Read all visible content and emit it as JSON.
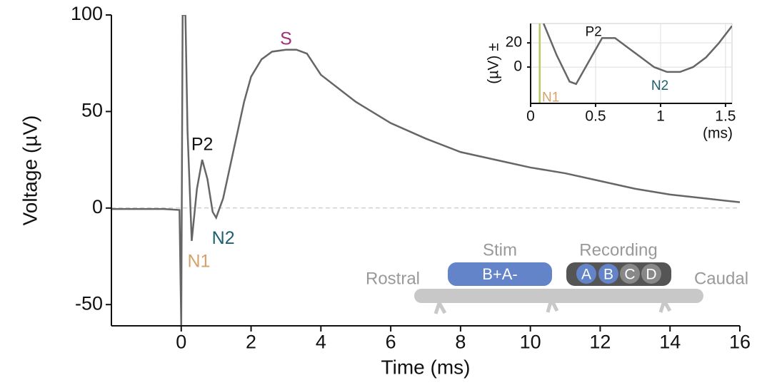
{
  "chart_data": [
    {
      "type": "line",
      "xlabel": "Time (ms)",
      "ylabel": "Voltage (µV)",
      "x": [
        -2,
        -1.5,
        -1,
        -0.5,
        -0.05,
        0,
        0.04,
        0.08,
        0.12,
        0.18,
        0.3,
        0.45,
        0.6,
        0.75,
        0.9,
        1.0,
        1.2,
        1.5,
        1.8,
        2.0,
        2.3,
        2.6,
        3.0,
        3.3,
        3.6,
        4,
        5,
        6,
        7,
        8,
        9,
        10,
        11,
        12,
        13,
        14,
        15,
        16
      ],
      "values": [
        -0.5,
        -0.5,
        -0.5,
        -0.5,
        -1,
        -61,
        100,
        100,
        100,
        40,
        -17,
        10,
        25,
        15,
        -2,
        -5,
        5,
        30,
        55,
        68,
        77,
        81,
        82,
        82,
        80,
        69,
        55,
        44,
        36,
        29,
        25,
        21,
        18,
        14,
        10,
        7,
        5,
        3
      ],
      "color": "#666666",
      "xlim": [
        -2,
        16
      ],
      "xticks": [
        0,
        2,
        4,
        6,
        8,
        10,
        12,
        14,
        16
      ],
      "ylim": [
        -61,
        100
      ],
      "yticks": [
        -50,
        0,
        50,
        100
      ],
      "annotations": [
        {
          "text": "S",
          "color": "#a0307a"
        },
        {
          "text": "P2",
          "color": "#111111"
        },
        {
          "text": "N1",
          "color": "#d4a26a"
        },
        {
          "text": "N2",
          "color": "#1f5f6e"
        }
      ]
    },
    {
      "type": "line",
      "xlabel": "(ms)",
      "ylabel": "(µV) ±",
      "x": [
        0.1,
        0.2,
        0.3,
        0.35,
        0.45,
        0.55,
        0.65,
        0.75,
        0.85,
        0.95,
        1.05,
        1.15,
        1.25,
        1.35,
        1.45,
        1.55
      ],
      "values": [
        36,
        10,
        -12,
        -14,
        5,
        24,
        24,
        16,
        8,
        0,
        -4,
        -4,
        0,
        8,
        20,
        34
      ],
      "color": "#666666",
      "marker_x": 0.07,
      "marker_color": "#b8c860",
      "xlim": [
        0,
        1.55
      ],
      "xticks": [
        0,
        0.5,
        1,
        1.5
      ],
      "ylim": [
        -30,
        36
      ],
      "yticks": [
        0,
        20
      ],
      "grid": true,
      "annotations": [
        {
          "text": "P2",
          "color": "#111111"
        },
        {
          "text": "N1",
          "color": "#d4a26a"
        },
        {
          "text": "N2",
          "color": "#1f5f6e"
        }
      ]
    }
  ],
  "diagram": {
    "rostral": "Rostral",
    "caudal": "Caudal",
    "stim": "Stim",
    "stim_electrode": "B+A-",
    "recording": "Recording",
    "recording_electrodes": [
      "A",
      "B",
      "C",
      "D"
    ]
  }
}
